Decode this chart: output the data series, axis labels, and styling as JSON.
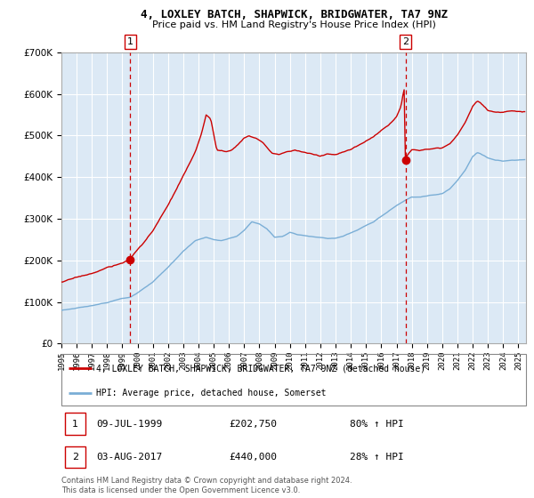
{
  "title1": "4, LOXLEY BATCH, SHAPWICK, BRIDGWATER, TA7 9NZ",
  "title2": "Price paid vs. HM Land Registry's House Price Index (HPI)",
  "legend1": "4, LOXLEY BATCH, SHAPWICK, BRIDGWATER, TA7 9NZ (detached house)",
  "legend2": "HPI: Average price, detached house, Somerset",
  "annotation1_date": "09-JUL-1999",
  "annotation1_price": "£202,750",
  "annotation1_hpi": "80% ↑ HPI",
  "annotation2_date": "03-AUG-2017",
  "annotation2_price": "£440,000",
  "annotation2_hpi": "28% ↑ HPI",
  "footer": "Contains HM Land Registry data © Crown copyright and database right 2024.\nThis data is licensed under the Open Government Licence v3.0.",
  "sale1_year": 1999.52,
  "sale1_value": 202750,
  "sale2_year": 2017.59,
  "sale2_value": 440000,
  "red_line_color": "#cc0000",
  "blue_line_color": "#7aaed6",
  "plot_bg": "#dce9f5",
  "grid_color": "#ffffff",
  "vline_color": "#cc0000",
  "ylim_max": 700000,
  "xlim_start": 1995.0,
  "xlim_end": 2025.5
}
